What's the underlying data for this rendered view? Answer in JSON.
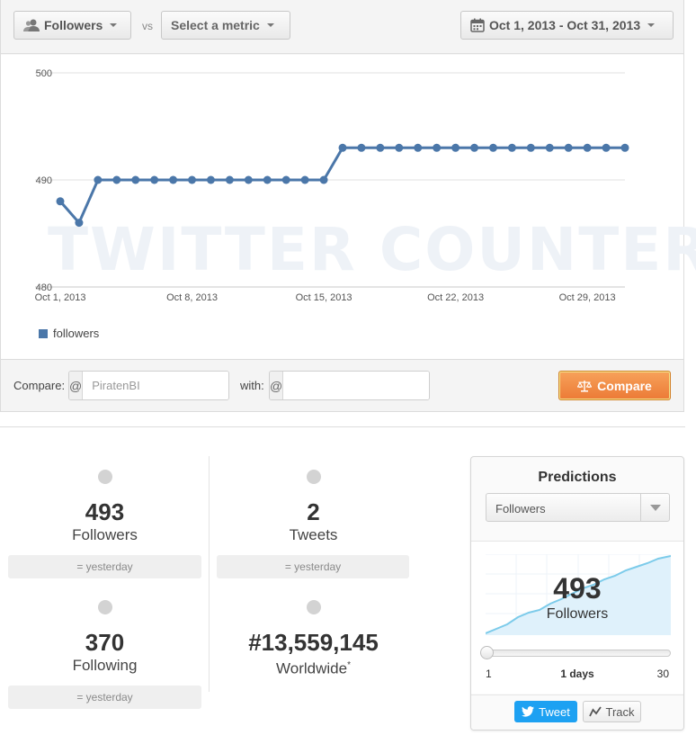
{
  "toolbar": {
    "metric_primary": "Followers",
    "vs_label": "vs",
    "metric_secondary": "Select a metric",
    "date_range": "Oct 1, 2013 - Oct 31, 2013",
    "icons": {
      "metric": "users-icon",
      "date": "calendar-icon",
      "dropdown": "caret-down-icon"
    }
  },
  "chart_data": {
    "type": "line",
    "title": "",
    "xlabel": "",
    "ylabel": "",
    "ylim": [
      480,
      500
    ],
    "y_ticks": [
      480,
      490,
      500
    ],
    "x_tick_labels": [
      "Oct 1, 2013",
      "Oct 8, 2013",
      "Oct 15, 2013",
      "Oct 22, 2013",
      "Oct 29, 2013"
    ],
    "x_tick_days": [
      1,
      8,
      15,
      22,
      29
    ],
    "x_range_days": [
      1,
      31
    ],
    "grid": true,
    "legend": "bottom-left",
    "watermark": "TWITTER COUNTER",
    "series": [
      {
        "name": "followers",
        "color": "#4b77a9",
        "x_days": [
          1,
          2,
          3,
          4,
          5,
          6,
          7,
          8,
          9,
          10,
          11,
          12,
          13,
          14,
          15,
          16,
          17,
          18,
          19,
          20,
          21,
          22,
          23,
          24,
          25,
          26,
          27,
          28,
          29,
          30,
          31
        ],
        "values": [
          488,
          486,
          490,
          490,
          490,
          490,
          490,
          490,
          490,
          490,
          490,
          490,
          490,
          490,
          490,
          493,
          493,
          493,
          493,
          493,
          493,
          493,
          493,
          493,
          493,
          493,
          493,
          493,
          493,
          493,
          493
        ]
      }
    ]
  },
  "compare": {
    "label": "Compare:",
    "at_symbol": "@",
    "input1_placeholder": "PiratenBI",
    "with_label": "with:",
    "input2_placeholder": "",
    "button_label": "Compare",
    "button_icon": "scale-icon",
    "button_color": "#ec7a36"
  },
  "stats": [
    {
      "value": "493",
      "label": "Followers",
      "delta": "= yesterday"
    },
    {
      "value": "2",
      "label": "Tweets",
      "delta": "= yesterday"
    },
    {
      "value": "370",
      "label": "Following",
      "delta": "= yesterday"
    },
    {
      "value": "#13,559,145",
      "label": "Worldwide",
      "note": "*"
    }
  ],
  "predictions": {
    "title": "Predictions",
    "metric": "Followers",
    "value": "493",
    "value_label": "Followers",
    "slider_min": "1",
    "slider_value_label": "1 days",
    "slider_max": "30",
    "slider_fraction": 0.0,
    "tweet_label": "Tweet",
    "track_label": "Track",
    "icons": {
      "tweet": "twitter-bird-icon",
      "track": "trend-line-icon"
    }
  }
}
